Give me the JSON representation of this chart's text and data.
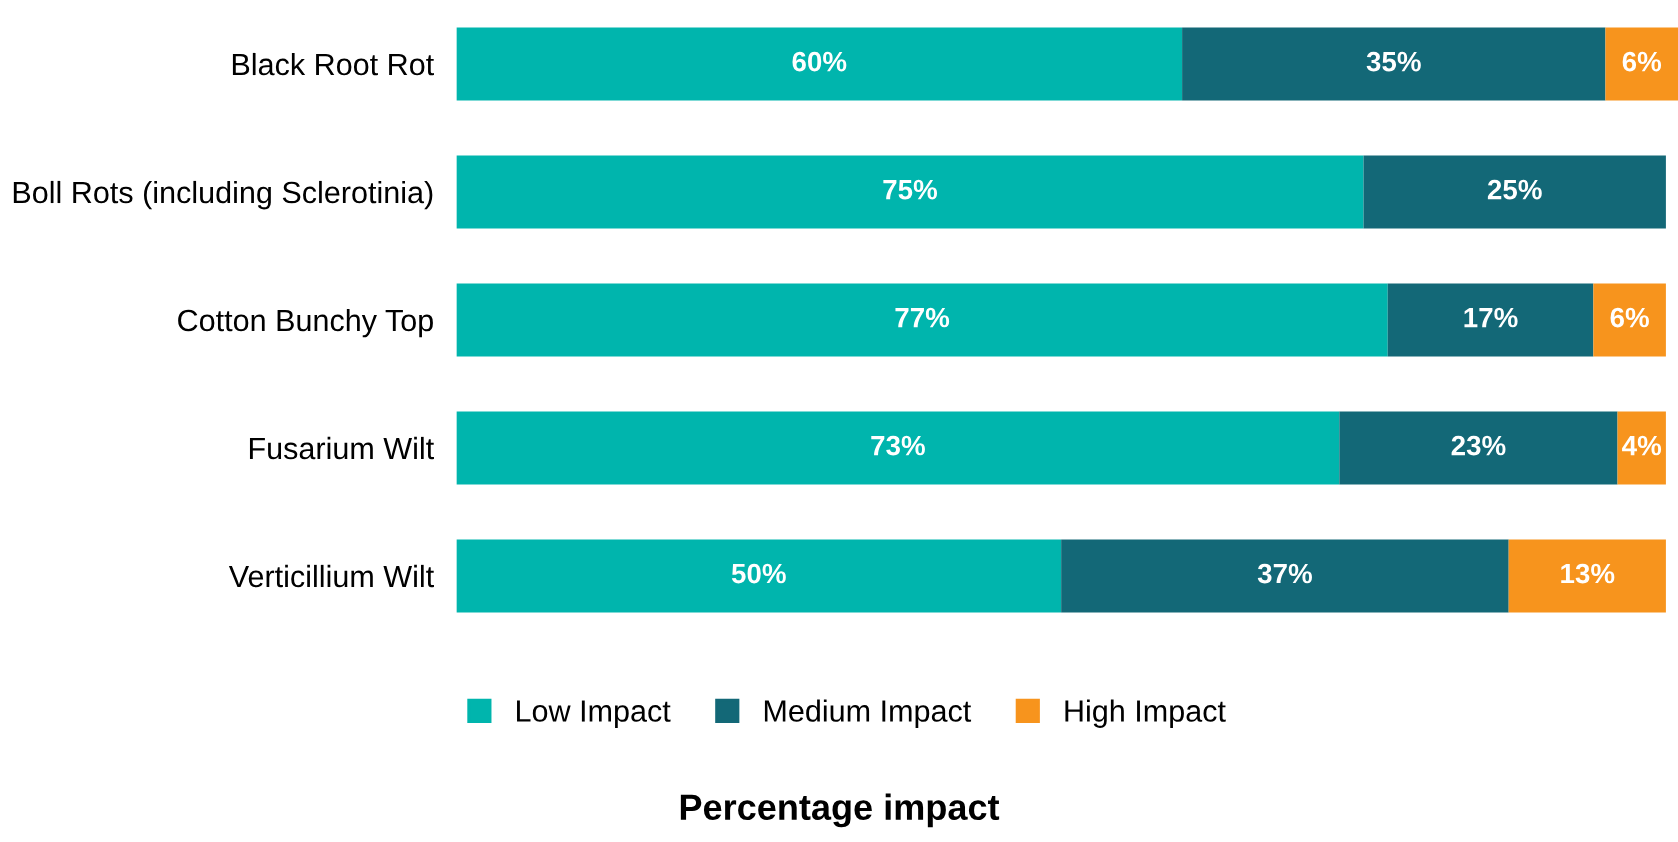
{
  "chart_data": {
    "type": "bar",
    "orientation": "horizontal",
    "stacked": true,
    "xlabel": "Percentage impact",
    "categories": [
      "Black Root Rot",
      "Boll Rots (including Sclerotinia)",
      "Cotton Bunchy Top",
      "Fusarium Wilt",
      "Verticillium Wilt"
    ],
    "series": [
      {
        "name": "Low Impact",
        "color": "#00b5ad",
        "values": [
          60,
          75,
          77,
          73,
          50
        ],
        "value_labels": [
          "60%",
          "75%",
          "77%",
          "73%",
          "50%"
        ]
      },
      {
        "name": "Medium Impact",
        "color": "#136877",
        "values": [
          35,
          25,
          17,
          23,
          37
        ],
        "value_labels": [
          "35%",
          "25%",
          "17%",
          "23%",
          "37%"
        ]
      },
      {
        "name": "High Impact",
        "color": "#f7941d",
        "values": [
          6,
          null,
          6,
          4,
          13
        ],
        "value_labels": [
          "6%",
          null,
          "6%",
          "4%",
          "13%"
        ]
      }
    ],
    "legend": "bottom",
    "tick_labels": "y",
    "grid": false
  }
}
